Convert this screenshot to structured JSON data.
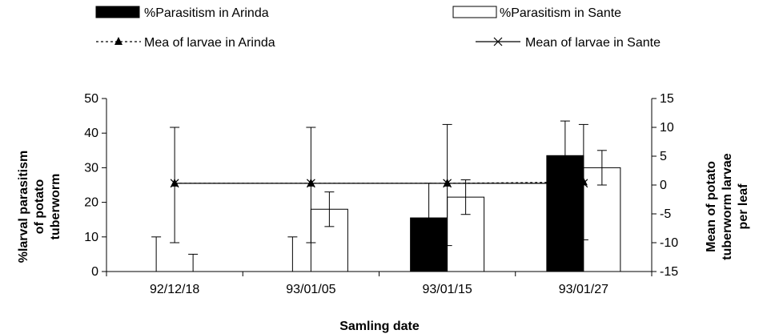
{
  "chart_data": {
    "type": "bar",
    "categories": [
      "92/12/18",
      "93/01/05",
      "93/01/15",
      "93/01/27"
    ],
    "xlabel": "Samling date",
    "ylabel": "%larval parasitism of potato tuberworm",
    "ylabel_lines": [
      "%larval parasitism",
      "of potato",
      "tuberworm"
    ],
    "y2label": "Mean of potato tuberworm larvae per leaf",
    "y2label_lines": [
      "Mean of potato",
      "tuberworm larvae",
      "per leaf"
    ],
    "ylim": [
      0,
      50
    ],
    "y2lim": [
      -15,
      15
    ],
    "yticks": [
      0,
      10,
      20,
      30,
      40,
      50
    ],
    "y2ticks": [
      -15,
      -10,
      -5,
      0,
      5,
      10,
      15
    ],
    "grid": false,
    "legend_position": "top",
    "series": [
      {
        "name": "%Parasitism in Arinda",
        "kind": "bar",
        "axis": "left",
        "color": "#000000",
        "values": [
          0,
          0,
          15.5,
          33.5
        ],
        "error": [
          {
            "low": 0,
            "high": 10
          },
          {
            "low": 0,
            "high": 10
          },
          {
            "low": 0,
            "high": 25.5
          },
          {
            "low": 23.5,
            "high": 43.5
          }
        ]
      },
      {
        "name": "%Parasitism in Sante",
        "kind": "bar",
        "axis": "left",
        "color": "#ffffff",
        "values": [
          0,
          18,
          21.5,
          30
        ],
        "error": [
          {
            "low": 0,
            "high": 5
          },
          {
            "low": 13,
            "high": 23
          },
          {
            "low": 16.5,
            "high": 26.5
          },
          {
            "low": 25,
            "high": 35
          }
        ]
      },
      {
        "name": "Mea of larvae in Arinda",
        "kind": "line",
        "axis": "right",
        "marker": "triangle",
        "dash": true,
        "values": [
          0.3,
          0.3,
          0.3,
          0.5
        ],
        "error": [
          {
            "low": -10,
            "high": 10
          },
          {
            "low": -10,
            "high": 10
          },
          {
            "low": -10.5,
            "high": 10.5
          },
          {
            "low": -9.5,
            "high": 10.5
          }
        ]
      },
      {
        "name": "Mean of larvae in Sante",
        "kind": "line",
        "axis": "right",
        "marker": "x",
        "dash": false,
        "values": [
          0.3,
          0.3,
          0.3,
          0.3
        ],
        "error": [
          {
            "low": 0.3,
            "high": 0.3
          },
          {
            "low": 0.3,
            "high": 0.3
          },
          {
            "low": 0.3,
            "high": 0.3
          },
          {
            "low": 0.3,
            "high": 0.3
          }
        ]
      }
    ]
  }
}
